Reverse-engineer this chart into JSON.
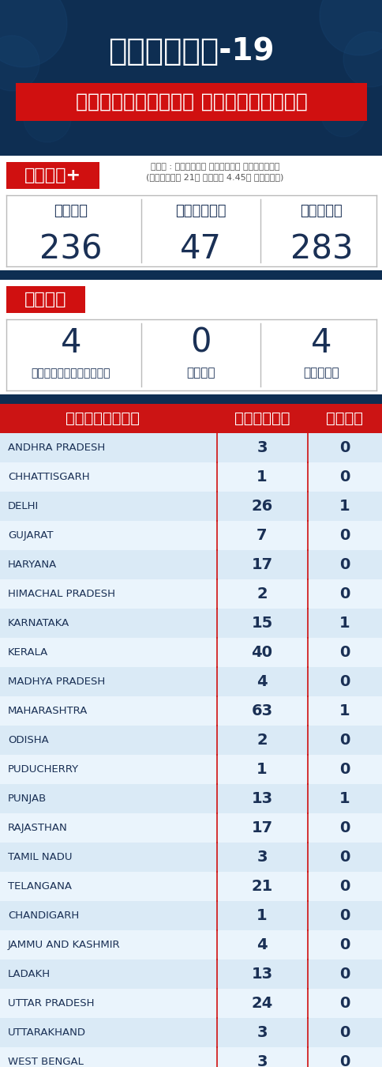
{
  "title_line1": "ಕೋವಿಡ್-19",
  "title_line2": "ಭಾರತದಲ್ಲಿನ ಪ್ರಕರಣಗಳು",
  "source_text": "ಮೂಲ : ಕೇಂದ್ರ ಆರೋಗ್ಯ ಸಚಿವಾಲಯ",
  "source_text2": "(ಮಾರ್ಚ್ 21ರ ಸಂಜೆ 4.45ರ ವರೆಗೆ)",
  "varadi_label": "ವರದಿ+",
  "today_label": "ಇಂದು",
  "yesterday_label": "ನಿನ್ನೆ",
  "total_label": "ಒಟ್ಟು",
  "today_cases": "236",
  "yesterday_cases": "47",
  "total_cases": "283",
  "saavu_label": "ಸಾವು",
  "death_yesterday": "4",
  "death_yesterday_label": "ನಿನ್ನೆಯವರೆಗೆ",
  "death_today": "0",
  "death_today_label": "ಇಂದು",
  "death_total": "4",
  "death_total_label": "ಒಟ್ಟು",
  "table_header_state": "ರಾಜ್ಯಗಳು",
  "table_header_cases": "ಪ್ರಕರಣ",
  "table_header_deaths": "ಸಾವು",
  "states": [
    "ANDHRA PRADESH",
    "CHHATTISGARH",
    "DELHI",
    "GUJARAT",
    "HARYANA",
    "HIMACHAL PRADESH",
    "KARNATAKA",
    "KERALA",
    "MADHYA PRADESH",
    "MAHARASHTRA",
    "ODISHA",
    "PUDUCHERRY",
    "PUNJAB",
    "RAJASTHAN",
    "TAMIL NADU",
    "TELANGANA",
    "CHANDIGARH",
    "JAMMU AND KASHMIR",
    "LADAKH",
    "UTTAR PRADESH",
    "UTTARAKHAND",
    "WEST BENGAL"
  ],
  "cases": [
    3,
    1,
    26,
    7,
    17,
    2,
    15,
    40,
    4,
    63,
    2,
    1,
    13,
    17,
    3,
    21,
    1,
    4,
    13,
    24,
    3,
    3
  ],
  "deaths": [
    0,
    0,
    1,
    0,
    0,
    0,
    1,
    0,
    0,
    1,
    0,
    0,
    1,
    0,
    0,
    0,
    0,
    0,
    0,
    0,
    0,
    0
  ],
  "header_bg": "#0e2e52",
  "red": "#d01010",
  "white": "#ffffff",
  "dark_blue_text": "#1a3055",
  "row_color_even": "#daeaf6",
  "row_color_odd": "#eaf4fc",
  "table_header_bg": "#cc1414",
  "footer_bg": "#111111",
  "etv_red": "#e01010",
  "section_bg": "#f0f0f0",
  "border_color": "#bbbbbb",
  "gap_color": "#d0d0d8"
}
